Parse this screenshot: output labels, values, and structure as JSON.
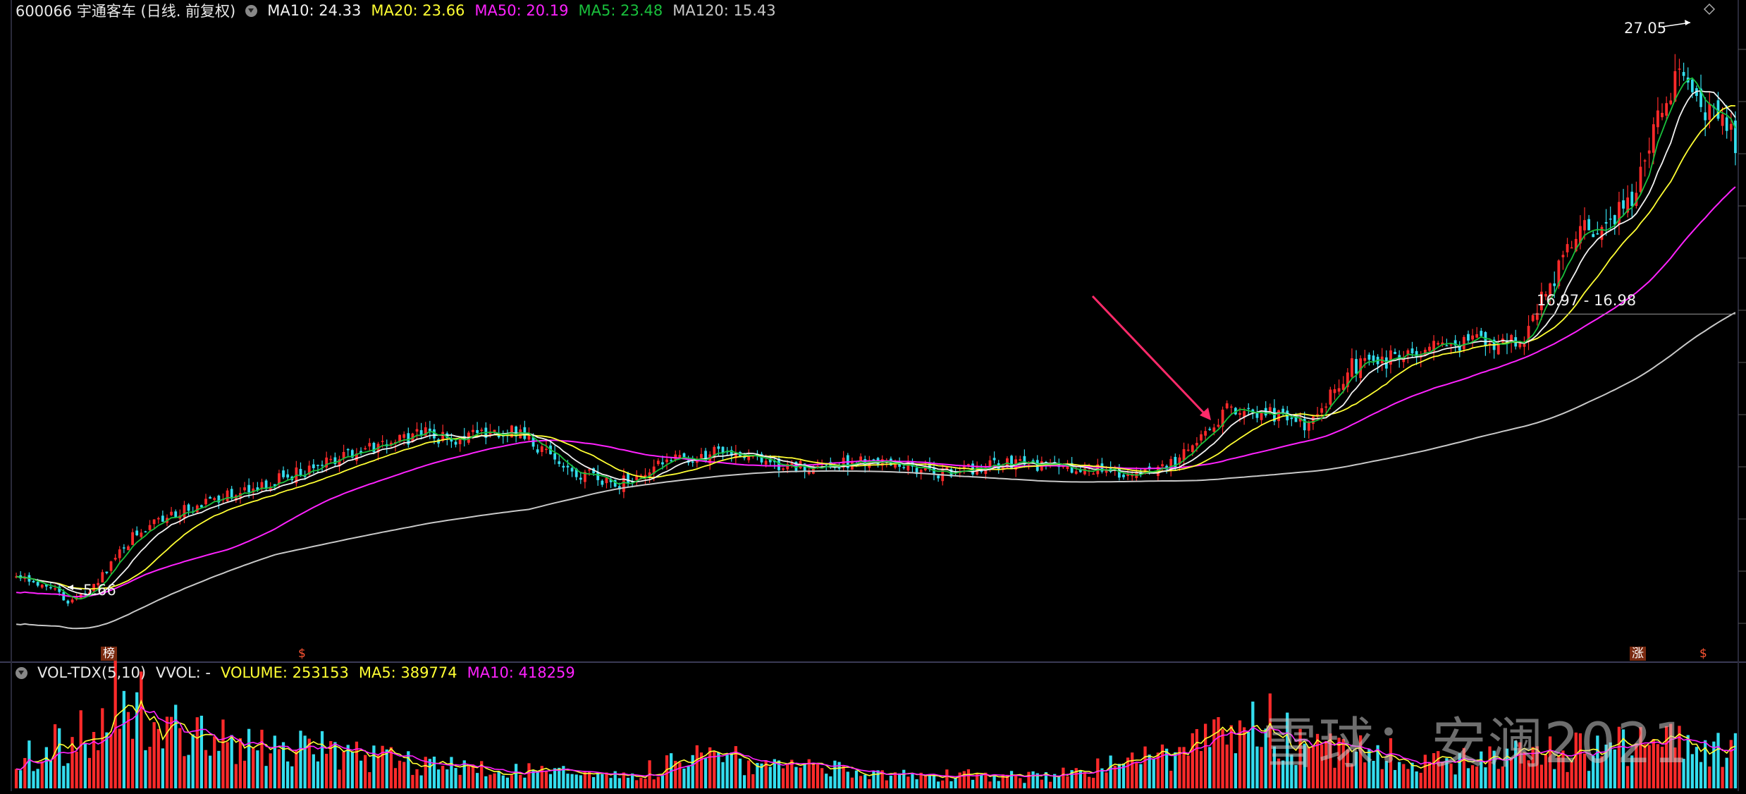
{
  "header": {
    "stock": "600066 宇通客车 (日线. 前复权)",
    "ma10": "MA10: 24.33",
    "ma20": "MA20: 23.66",
    "ma50": "MA50: 20.19",
    "ma5": "MA5: 23.48",
    "ma120": "MA120: 15.43"
  },
  "vol_header": {
    "name": "VOL-TDX(5,10)",
    "vvol": "VVOL: -",
    "volume": "VOLUME: 253153",
    "ma5": "MA5: 389774",
    "ma10": "MA10: 418259"
  },
  "annotations": {
    "high": "27.05",
    "low": "5.66",
    "range": "16.97 - 16.98",
    "badge_bang": "榜",
    "badge_s1": "$",
    "badge_zhang": "涨",
    "badge_s2": "$"
  },
  "watermark": "雪球：安澜2021",
  "colors": {
    "up": "#ff2a2a",
    "down": "#33ddee",
    "ma5": "#19c03c",
    "ma10": "#f2f2f2",
    "ma20": "#ffff33",
    "ma50": "#ff22ff",
    "ma120": "#c8c8c8",
    "arrow": "#ff2a6a"
  },
  "chart_data": {
    "type": "candlestick",
    "ylim": [
      4.5,
      28.0
    ],
    "price_anchors": [
      [
        0,
        7.2
      ],
      [
        8,
        6.6
      ],
      [
        12,
        6.2
      ],
      [
        18,
        6.7
      ],
      [
        28,
        8.8
      ],
      [
        45,
        10.0
      ],
      [
        62,
        10.8
      ],
      [
        80,
        11.8
      ],
      [
        95,
        12.5
      ],
      [
        100,
        12.2
      ],
      [
        115,
        12.6
      ],
      [
        130,
        11.0
      ],
      [
        140,
        10.6
      ],
      [
        150,
        11.4
      ],
      [
        165,
        11.8
      ],
      [
        180,
        11.2
      ],
      [
        200,
        11.4
      ],
      [
        215,
        11.0
      ],
      [
        230,
        11.3
      ],
      [
        250,
        11.2
      ],
      [
        262,
        10.9
      ],
      [
        270,
        11.5
      ],
      [
        282,
        13.5
      ],
      [
        290,
        13.3
      ],
      [
        300,
        12.8
      ],
      [
        310,
        15.0
      ],
      [
        320,
        15.3
      ],
      [
        330,
        15.7
      ],
      [
        345,
        16.0
      ],
      [
        350,
        16.1
      ],
      [
        355,
        17.8
      ],
      [
        362,
        20.0
      ],
      [
        375,
        21.0
      ],
      [
        380,
        23.8
      ],
      [
        386,
        26.2
      ],
      [
        393,
        24.5
      ],
      [
        400,
        23.3
      ]
    ],
    "volume_anchors": [
      [
        0,
        250000
      ],
      [
        20,
        600000
      ],
      [
        25,
        900000
      ],
      [
        35,
        500000
      ],
      [
        60,
        400000
      ],
      [
        100,
        200000
      ],
      [
        140,
        100000
      ],
      [
        160,
        280000
      ],
      [
        200,
        130000
      ],
      [
        240,
        100000
      ],
      [
        270,
        300000
      ],
      [
        290,
        600000
      ],
      [
        300,
        350000
      ],
      [
        340,
        250000
      ],
      [
        370,
        350000
      ],
      [
        390,
        420000
      ],
      [
        400,
        380000
      ]
    ],
    "bars": 400,
    "ma_periods": [
      5,
      10,
      20,
      50,
      120
    ],
    "notes": "Daily candlestick with moving averages and volume sub-panel"
  }
}
